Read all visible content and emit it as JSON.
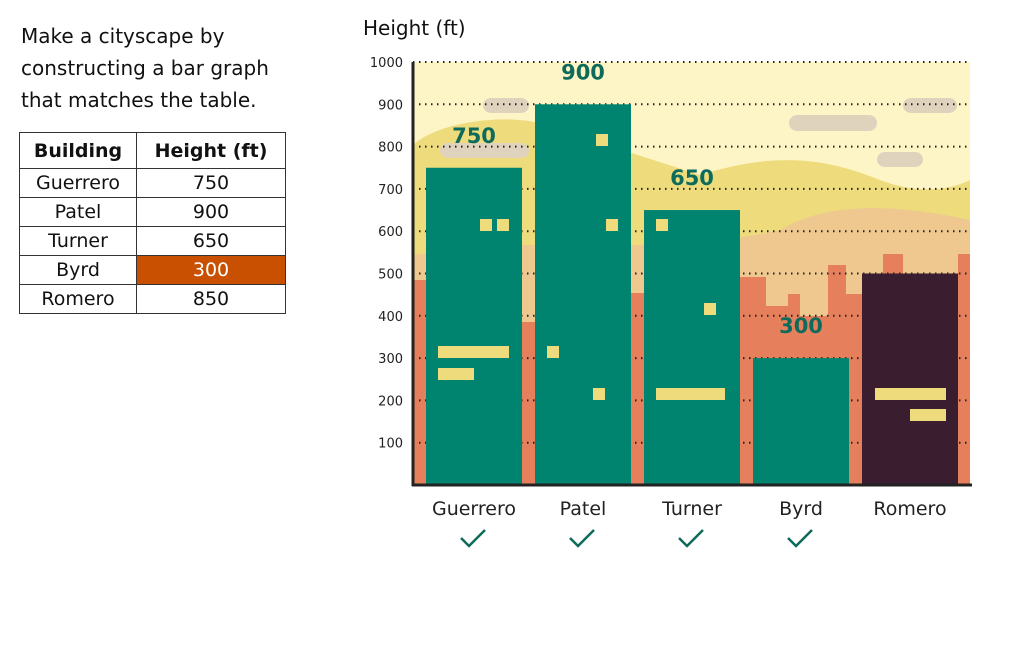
{
  "prompt": "Make a cityscape by constructing a bar graph that matches the table.",
  "table": {
    "headers": [
      "Building",
      "Height (ft)"
    ],
    "rows": [
      [
        "Guerrero",
        "750"
      ],
      [
        "Patel",
        "900"
      ],
      [
        "Turner",
        "650"
      ],
      [
        "Byrd",
        "300"
      ],
      [
        "Romero",
        "850"
      ]
    ],
    "highlight_row": 3
  },
  "chart_data": {
    "type": "bar",
    "ylabel": "Height (ft)",
    "ylim": [
      0,
      1000
    ],
    "yticks": [
      100,
      200,
      300,
      400,
      500,
      600,
      700,
      800,
      900,
      1000
    ],
    "categories": [
      "Guerrero",
      "Patel",
      "Turner",
      "Byrd",
      "Romero"
    ],
    "values": [
      750,
      900,
      650,
      300,
      500
    ],
    "labels": [
      "750",
      "900",
      "650",
      "300",
      ""
    ],
    "checked": [
      true,
      true,
      true,
      true,
      false
    ],
    "colors": [
      "#00846f",
      "#00846f",
      "#00846f",
      "#00846f",
      "#3b1d30"
    ],
    "grid": true
  }
}
